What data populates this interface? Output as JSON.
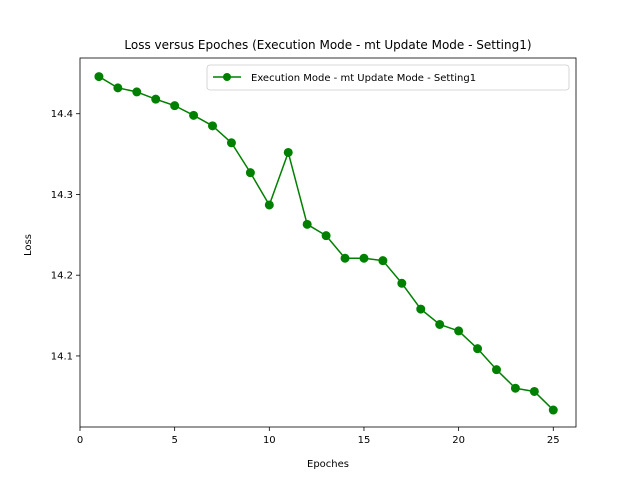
{
  "chart_data": {
    "type": "line",
    "title": "Loss versus Epoches (Execution Mode - mt Update Mode - Setting1)",
    "xlabel": "Epoches",
    "ylabel": "Loss",
    "xlim": [
      0,
      26.2
    ],
    "ylim": [
      14.012,
      14.469
    ],
    "xticks": [
      0,
      5,
      10,
      15,
      20,
      25
    ],
    "yticks": [
      14.1,
      14.2,
      14.3,
      14.4
    ],
    "grid": false,
    "legend_position": "upper right",
    "series": [
      {
        "name": "Execution Mode - mt Update Mode - Setting1",
        "color": "#008000",
        "marker": "circle",
        "x": [
          1,
          2,
          3,
          4,
          5,
          6,
          7,
          8,
          9,
          10,
          11,
          12,
          13,
          14,
          15,
          16,
          17,
          18,
          19,
          20,
          21,
          22,
          23,
          24,
          25
        ],
        "y": [
          14.446,
          14.432,
          14.427,
          14.418,
          14.41,
          14.398,
          14.385,
          14.364,
          14.327,
          14.287,
          14.352,
          14.263,
          14.249,
          14.221,
          14.221,
          14.218,
          14.19,
          14.158,
          14.139,
          14.131,
          14.109,
          14.083,
          14.06,
          14.056,
          14.033
        ]
      }
    ]
  }
}
